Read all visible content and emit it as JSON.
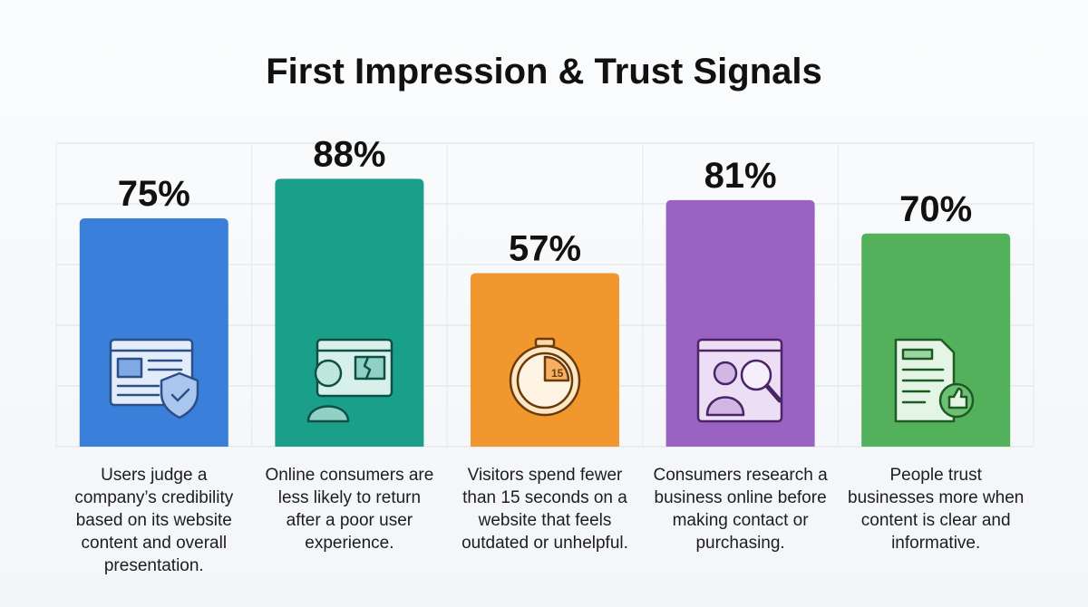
{
  "chart_data": {
    "type": "bar",
    "title": "First Impression & Trust Signals",
    "categories": [
      "Users judge a company’s credibility based on its website content and overall presentation.",
      "Online consumers are less likely to return after a poor user experience.",
      "Visitors spend fewer than 15 seconds on a website that feels outdated or unhelpful.",
      "Consumers research a business online before making contact or purchasing.",
      "People trust businesses more when content is clear and informative."
    ],
    "values": [
      75,
      88,
      57,
      81,
      70
    ],
    "value_labels": [
      "75%",
      "88%",
      "57%",
      "81%",
      "70%"
    ],
    "colors": [
      "#3a7fd9",
      "#1a9f8b",
      "#f0972e",
      "#9a62c1",
      "#53b15c"
    ],
    "grid": true
  }
}
